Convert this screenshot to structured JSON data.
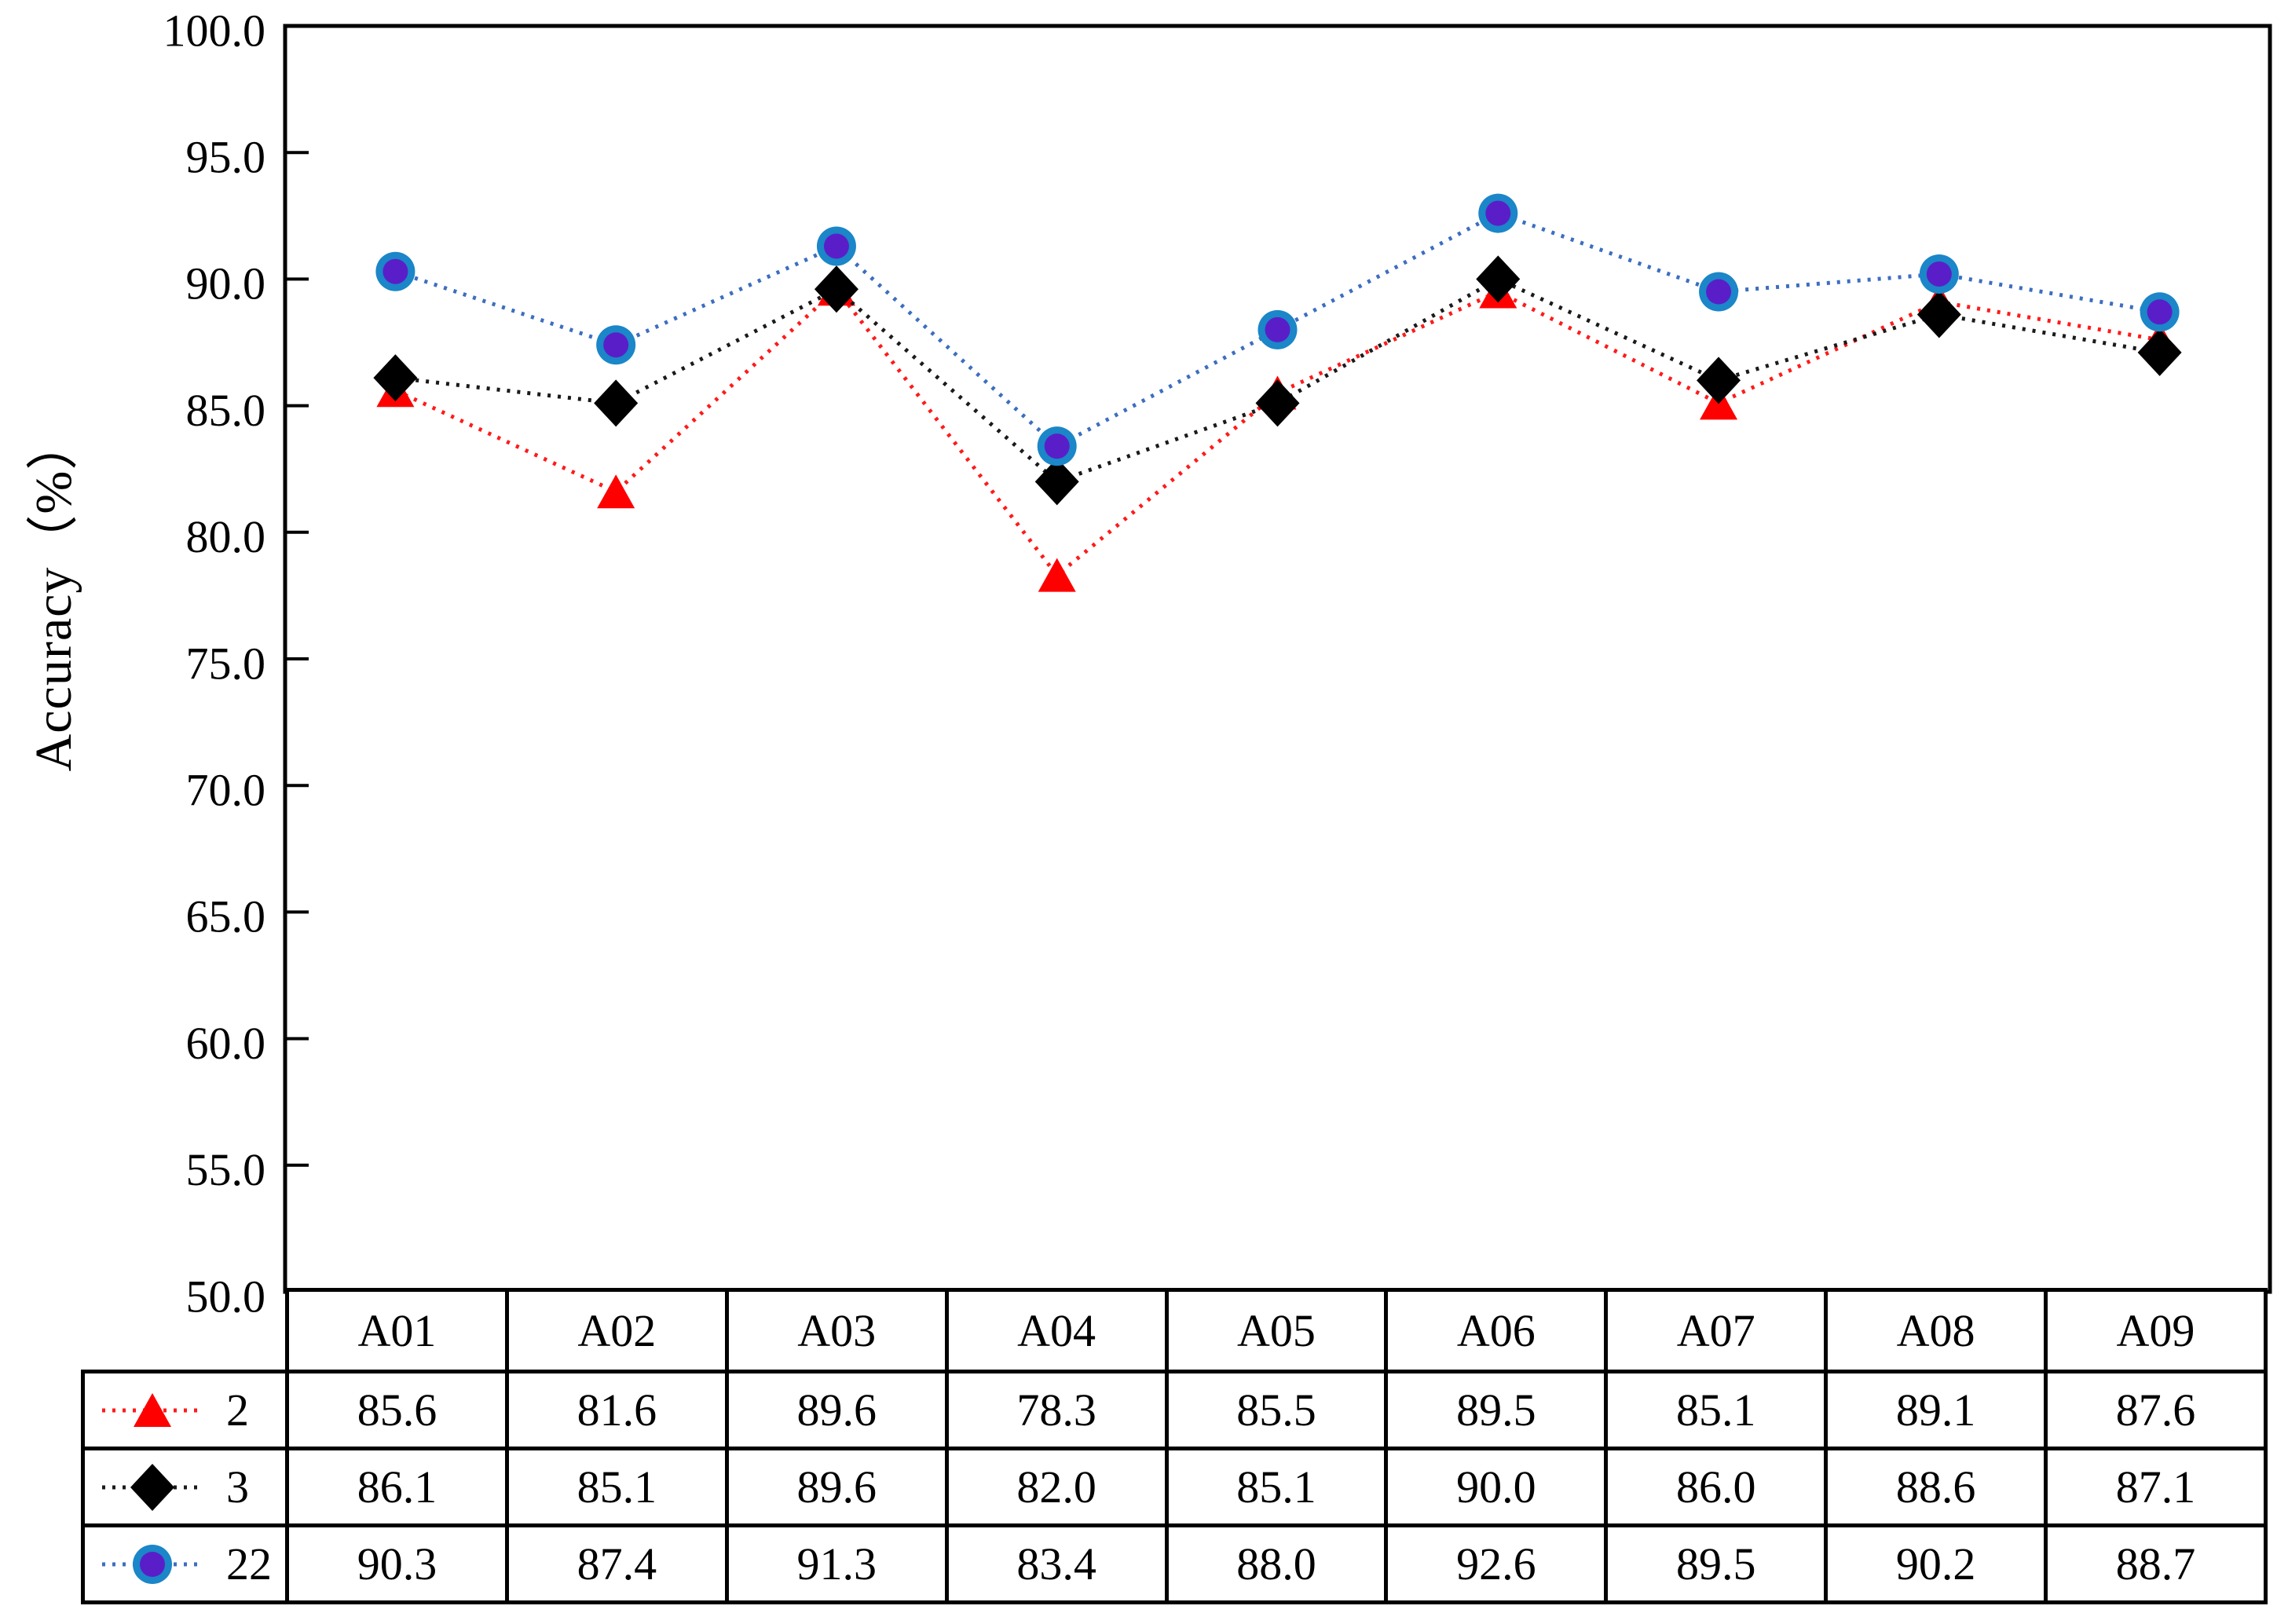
{
  "chart_data": {
    "type": "line",
    "title": "",
    "ylabel": "Accuracy（%）",
    "xlabel": "",
    "ylim": [
      50.0,
      100.0
    ],
    "ytick_step": 5.0,
    "ytick_labels": [
      "100.0",
      "95.0",
      "90.0",
      "85.0",
      "80.0",
      "75.0",
      "70.0",
      "65.0",
      "60.0",
      "55.0",
      "50.0"
    ],
    "grid": false,
    "legend_position": "table-left",
    "categories": [
      "A01",
      "A02",
      "A03",
      "A04",
      "A05",
      "A06",
      "A07",
      "A08",
      "A09"
    ],
    "series": [
      {
        "name": "2",
        "marker": "triangle",
        "marker_color": "#ff0000",
        "line_color": "#ff1a1a",
        "line_style": "dotted",
        "values": [
          85.6,
          81.6,
          89.6,
          78.3,
          85.5,
          89.5,
          85.1,
          89.1,
          87.6
        ]
      },
      {
        "name": "3",
        "marker": "diamond",
        "marker_color": "#000000",
        "line_color": "#1a1a1a",
        "line_style": "dotted",
        "values": [
          86.1,
          85.1,
          89.6,
          82.0,
          85.1,
          90.0,
          86.0,
          88.6,
          87.1
        ]
      },
      {
        "name": "22",
        "marker": "circle",
        "marker_color": "#1b86c8",
        "marker_fill": "#5a1ec8",
        "line_color": "#3c6ec0",
        "line_style": "dotted",
        "values": [
          90.3,
          87.4,
          91.3,
          83.4,
          88.0,
          92.6,
          89.5,
          90.2,
          88.7
        ]
      }
    ],
    "colors": {
      "axis": "#000000",
      "text": "#000000",
      "background": "#ffffff"
    }
  }
}
